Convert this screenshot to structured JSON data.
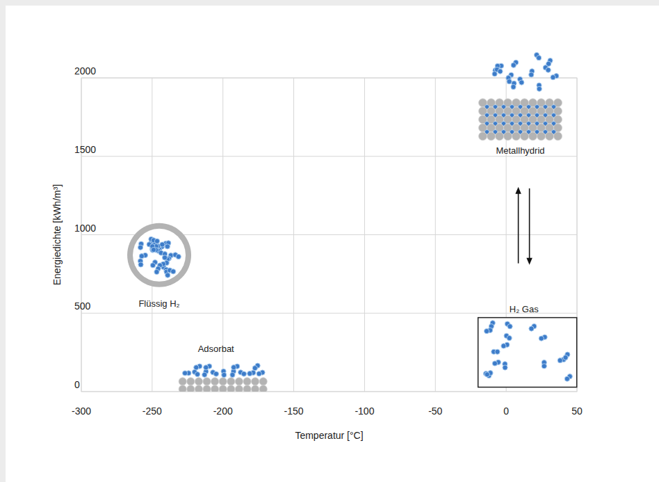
{
  "chart_data": {
    "type": "scatter",
    "xlabel": "Temperatur [°C]",
    "ylabel": "Energiedichte [kWh/m³]",
    "xlim": [
      -300,
      50
    ],
    "ylim": [
      0,
      2000
    ],
    "xticks": [
      -300,
      -250,
      -200,
      -150,
      -100,
      -50,
      0,
      50
    ],
    "yticks": [
      0,
      500,
      1000,
      1500,
      2000
    ],
    "grid": true,
    "series": [
      {
        "name": "Flüssig H₂",
        "x": [
          -245
        ],
        "values": [
          870
        ],
        "marker": "tank",
        "color": "#3d7cc9"
      },
      {
        "name": "Adsorbat",
        "x": [
          -200
        ],
        "values": [
          100
        ],
        "marker": "layer",
        "color": "#3d7cc9"
      },
      {
        "name": "H₂ Gas",
        "x": [
          15
        ],
        "values": [
          250
        ],
        "marker": "box",
        "color": "#3d7cc9"
      },
      {
        "name": "Metallhydrid",
        "x": [
          10
        ],
        "values": [
          1850
        ],
        "marker": "lattice",
        "color": "#3d7cc9"
      }
    ]
  }
}
